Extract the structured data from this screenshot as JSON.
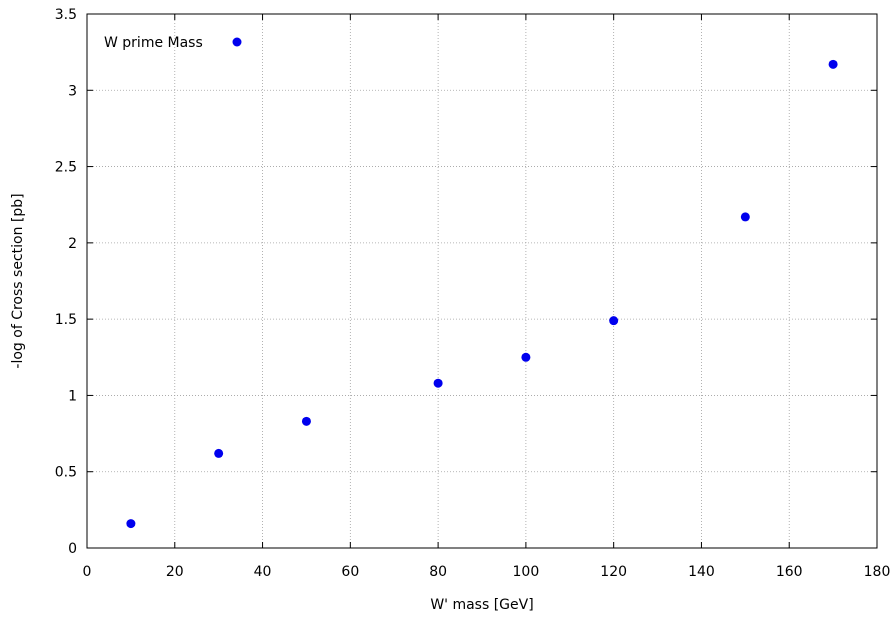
{
  "chart_data": {
    "type": "scatter",
    "xlabel": "W' mass [GeV]",
    "ylabel": "-log of Cross section [pb]",
    "xlim": [
      0,
      180
    ],
    "ylim": [
      0,
      3.5
    ],
    "xticks": [
      0,
      20,
      40,
      60,
      80,
      100,
      120,
      140,
      160,
      180
    ],
    "yticks": [
      0,
      0.5,
      1,
      1.5,
      2,
      2.5,
      3,
      3.5
    ],
    "xtick_labels": [
      "0",
      "20",
      "40",
      "60",
      "80",
      "100",
      "120",
      "140",
      "160",
      "180"
    ],
    "ytick_labels": [
      "0",
      "0.5",
      "1",
      "1.5",
      "2",
      "2.5",
      "3",
      "3.5"
    ],
    "grid": true,
    "legend": {
      "placement": "top-left"
    },
    "series": [
      {
        "name": "W prime Mass",
        "color": "#0000ee",
        "x": [
          10,
          30,
          50,
          80,
          100,
          120,
          150,
          170
        ],
        "y": [
          0.16,
          0.62,
          0.83,
          1.08,
          1.25,
          1.49,
          2.17,
          3.17
        ]
      }
    ]
  }
}
